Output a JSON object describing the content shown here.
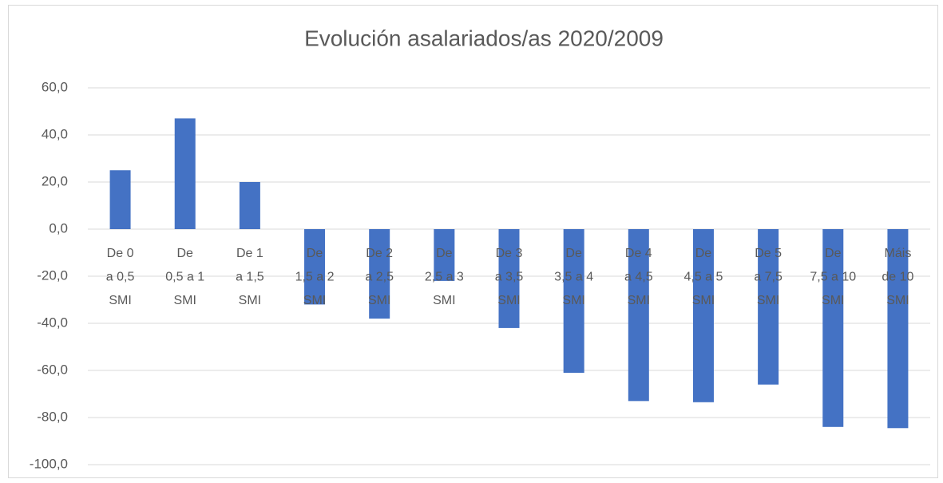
{
  "chart_data": {
    "type": "bar",
    "title": "Evolución asalariados/as 2020/2009",
    "categories": [
      "De 0 a 0,5 SMI",
      "De 0,5 a 1 SMI",
      "De 1 a 1,5 SMI",
      "De 1,5 a 2 SMI",
      "De 2 a 2,5 SMI",
      "De 2,5 a 3 SMI",
      "De 3 a 3,5 SMI",
      "De 3,5 a 4 SMI",
      "De 4 a 4,5 SMI",
      "De 4,5 a 5 SMI",
      "De 5 a 7,5 SMI",
      "De 7,5 a 10 SMI",
      "Máis de 10 SMI"
    ],
    "values": [
      25,
      47,
      20,
      -32,
      -38,
      -22,
      -42,
      -61,
      -73,
      -73.5,
      -66,
      -84,
      -84.5
    ],
    "color": "#4472c4",
    "ylim": [
      -100,
      60
    ],
    "yticks": [
      {
        "value": -100,
        "label": "-100,0"
      },
      {
        "value": -80,
        "label": "-80,0"
      },
      {
        "value": -60,
        "label": "-60,0"
      },
      {
        "value": -40,
        "label": "-40,0"
      },
      {
        "value": -20,
        "label": "-20,0"
      },
      {
        "value": 0,
        "label": "0,0"
      },
      {
        "value": 20,
        "label": "20,0"
      },
      {
        "value": 40,
        "label": "40,0"
      },
      {
        "value": 60,
        "label": "60,0"
      }
    ],
    "grid": true
  }
}
